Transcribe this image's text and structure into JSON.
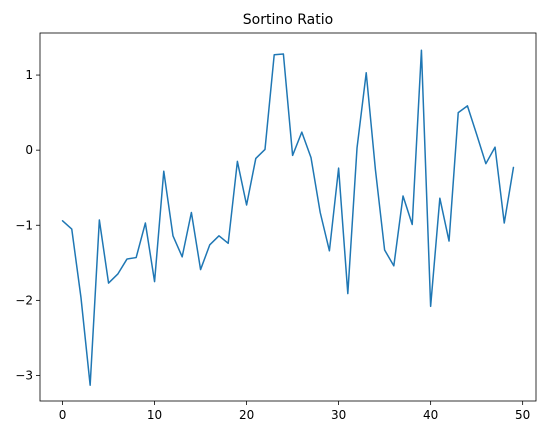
{
  "chart_data": {
    "type": "line",
    "title": "Sortino Ratio",
    "xlabel": "",
    "ylabel": "",
    "xlim": [
      -2.45,
      51.45
    ],
    "ylim": [
      -3.34,
      1.56
    ],
    "grid": false,
    "legend": "none",
    "x_ticks": [
      0,
      10,
      20,
      30,
      40,
      50
    ],
    "x_tick_labels": [
      "0",
      "10",
      "20",
      "30",
      "40",
      "50"
    ],
    "y_ticks": [
      -3,
      -2,
      -1,
      0,
      1
    ],
    "y_tick_labels": [
      "−3",
      "−2",
      "−1",
      "0",
      "1"
    ],
    "series": [
      {
        "color": "#1f77b4",
        "x": [
          0,
          1,
          2,
          3,
          4,
          5,
          6,
          7,
          8,
          9,
          10,
          11,
          12,
          13,
          14,
          15,
          16,
          17,
          18,
          19,
          20,
          21,
          22,
          23,
          24,
          25,
          26,
          27,
          28,
          29,
          30,
          31,
          32,
          33,
          34,
          35,
          36,
          37,
          38,
          39,
          40,
          41,
          42,
          43,
          44,
          45,
          46,
          47,
          48,
          49
        ],
        "values": [
          -0.94,
          -1.05,
          -1.96,
          -3.13,
          -0.93,
          -1.77,
          -1.65,
          -1.45,
          -1.43,
          -0.97,
          -1.75,
          -0.28,
          -1.14,
          -1.42,
          -0.83,
          -1.59,
          -1.26,
          -1.14,
          -1.24,
          -0.15,
          -0.73,
          -0.11,
          0.01,
          1.27,
          1.28,
          -0.07,
          0.24,
          -0.1,
          -0.83,
          -1.34,
          -0.24,
          -1.91,
          0.03,
          1.03,
          -0.26,
          -1.33,
          -1.54,
          -0.61,
          -0.99,
          1.33,
          -2.08,
          -0.64,
          -1.21,
          0.5,
          0.59,
          0.21,
          -0.18,
          0.04,
          -0.97,
          -0.23
        ]
      }
    ]
  }
}
